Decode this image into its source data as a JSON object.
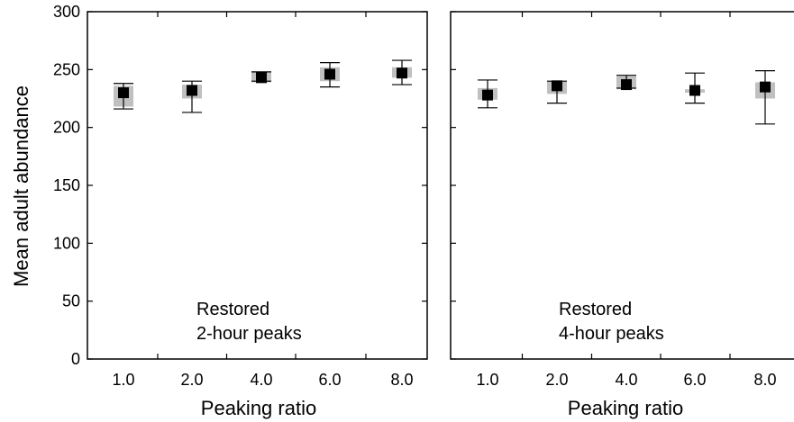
{
  "chart_data": {
    "type": "scatter",
    "ylabel": "Mean adult abundance",
    "ylim": [
      0,
      300
    ],
    "yticks": [
      "0",
      "50",
      "100",
      "150",
      "200",
      "250",
      "300"
    ],
    "grid": false,
    "colors": {
      "marker": "#000000",
      "band": "#c0c0c0",
      "errorbar": "#000000"
    },
    "panels": [
      {
        "xlabel": "Peaking ratio",
        "categories": [
          "1.0",
          "2.0",
          "4.0",
          "6.0",
          "8.0"
        ],
        "annotation": [
          "Restored",
          "2-hour peaks"
        ],
        "mean": [
          230,
          232,
          243,
          246,
          247
        ],
        "error_low": [
          216,
          213,
          240,
          235,
          237
        ],
        "error_high": [
          238,
          240,
          248,
          256,
          258
        ],
        "band_low": [
          218,
          225,
          239,
          240,
          243
        ],
        "band_high": [
          236,
          237,
          248,
          252,
          252
        ]
      },
      {
        "xlabel": "Peaking ratio",
        "categories": [
          "1.0",
          "2.0",
          "4.0",
          "6.0",
          "8.0"
        ],
        "annotation": [
          "Restored",
          "4-hour peaks"
        ],
        "mean": [
          228,
          236,
          237,
          232,
          235
        ],
        "error_low": [
          217,
          221,
          234,
          221,
          203
        ],
        "error_high": [
          241,
          240,
          245,
          247,
          249
        ],
        "band_low": [
          224,
          229,
          233,
          230,
          225
        ],
        "band_high": [
          234,
          240,
          244,
          233,
          239
        ]
      }
    ]
  }
}
